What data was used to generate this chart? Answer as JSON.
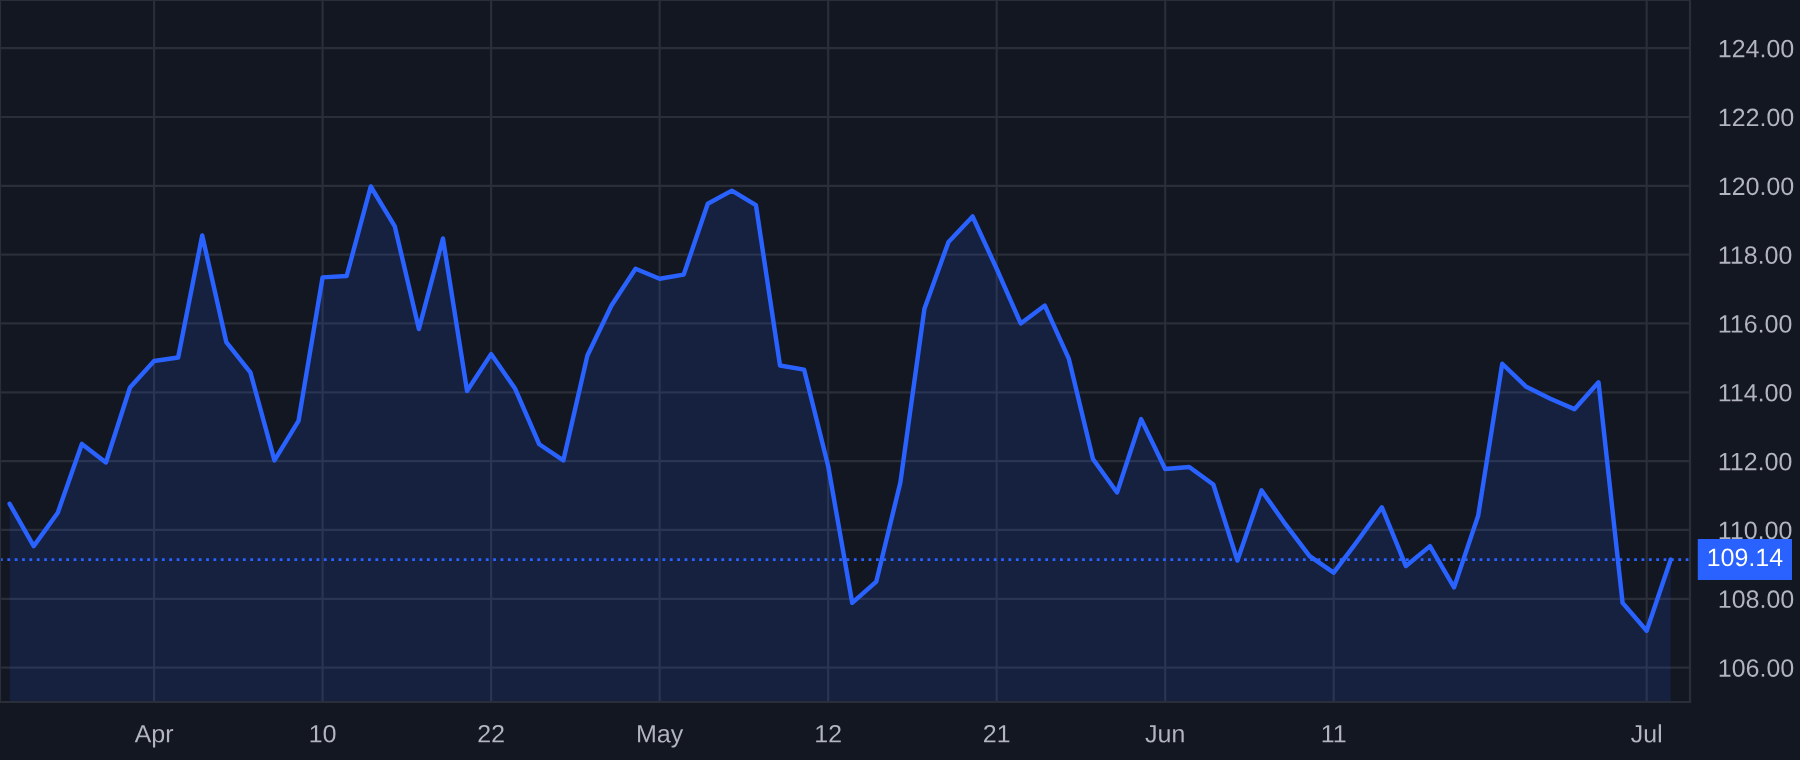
{
  "chart_data": {
    "type": "area",
    "categories": [
      null,
      null,
      null,
      null,
      null,
      null,
      "Apr",
      null,
      null,
      null,
      null,
      null,
      null,
      "10",
      null,
      null,
      null,
      null,
      null,
      null,
      "22",
      null,
      null,
      null,
      null,
      null,
      null,
      "May",
      null,
      null,
      null,
      null,
      null,
      null,
      "12",
      null,
      null,
      null,
      null,
      null,
      null,
      "21",
      null,
      null,
      null,
      null,
      null,
      null,
      "Jun",
      null,
      null,
      null,
      null,
      null,
      null,
      "11",
      null,
      null,
      null,
      null,
      null,
      null,
      null,
      null,
      null,
      null,
      null,
      null,
      "Jul",
      null
    ],
    "series": [
      {
        "color": "#2962ff",
        "values": [
          110.76,
          109.53,
          110.5,
          112.5,
          111.96,
          114.14,
          114.91,
          115.01,
          118.56,
          115.46,
          114.58,
          112.02,
          113.17,
          117.34,
          117.38,
          119.98,
          118.82,
          115.84,
          118.47,
          114.04,
          115.11,
          114.1,
          112.49,
          112.02,
          115.07,
          116.52,
          117.59,
          117.3,
          117.42,
          119.48,
          119.86,
          119.44,
          114.78,
          114.66,
          111.86,
          107.88,
          108.5,
          111.38,
          116.43,
          118.37,
          119.11,
          117.59,
          116.0,
          116.52,
          114.97,
          112.06,
          111.09,
          113.22,
          111.77,
          111.83,
          111.32,
          109.11,
          111.15,
          110.16,
          109.24,
          108.76,
          109.69,
          110.66,
          108.95,
          109.53,
          108.33,
          110.41,
          114.83,
          114.16,
          113.81,
          113.51,
          114.29,
          107.88,
          107.07,
          109.14
        ]
      }
    ],
    "ylim": [
      105,
      125.4
    ],
    "yticks": [
      {
        "value": 106,
        "label": "106.00"
      },
      {
        "value": 108,
        "label": "108.00"
      },
      {
        "value": 110,
        "label": "110.00"
      },
      {
        "value": 112,
        "label": "112.00"
      },
      {
        "value": 114,
        "label": "114.00"
      },
      {
        "value": 116,
        "label": "116.00"
      },
      {
        "value": 118,
        "label": "118.00"
      },
      {
        "value": 120,
        "label": "120.00"
      },
      {
        "value": 122,
        "label": "122.00"
      },
      {
        "value": 124,
        "label": "124.00"
      }
    ],
    "ref_lines": [
      {
        "axis": "y",
        "value": 109.14,
        "label": "109.14",
        "color": "#2962ff",
        "line_style": "dotted"
      }
    ],
    "grid": true,
    "legend": false
  }
}
